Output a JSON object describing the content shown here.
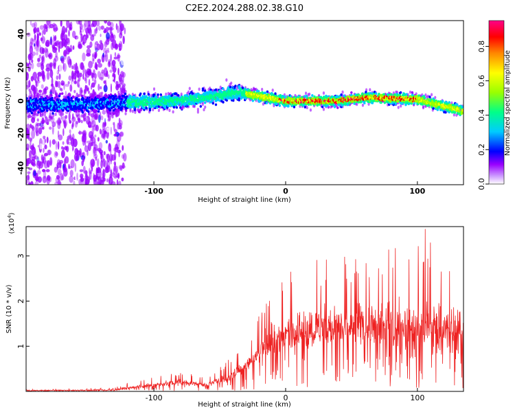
{
  "title": "C2E2.2024.288.02.38.G10",
  "chart_data": [
    {
      "type": "heatmap",
      "xlabel": "Height of straight line (km)",
      "ylabel": "Frequency (Hz)",
      "xlim": [
        -197,
        135
      ],
      "ylim": [
        -50,
        48
      ],
      "xticks": [
        -100,
        0,
        100
      ],
      "yticks": [
        -40,
        -20,
        0,
        20,
        40
      ],
      "colorbar": {
        "label": "Normalized spectral amplitude",
        "range": [
          0.0,
          0.95
        ],
        "ticks": [
          0.0,
          0.2,
          0.4,
          0.6,
          0.8
        ],
        "tick_labels": [
          "0.0",
          "0.2",
          "0.4",
          "0.6",
          "0.8"
        ],
        "colors": [
          "#ffffff",
          "#9900ff",
          "#0000ff",
          "#00ccff",
          "#00ff88",
          "#99ff00",
          "#ffff00",
          "#ff8800",
          "#ff0000",
          "#ff0088"
        ]
      },
      "band_center_hz": [
        {
          "x": -197,
          "y": -2
        },
        {
          "x": -150,
          "y": -2
        },
        {
          "x": -120,
          "y": -1
        },
        {
          "x": -80,
          "y": 0
        },
        {
          "x": -55,
          "y": 3
        },
        {
          "x": -35,
          "y": 5
        },
        {
          "x": -20,
          "y": 3
        },
        {
          "x": 0,
          "y": 0
        },
        {
          "x": 40,
          "y": 0
        },
        {
          "x": 60,
          "y": 2
        },
        {
          "x": 100,
          "y": 1
        },
        {
          "x": 135,
          "y": -6
        }
      ]
    },
    {
      "type": "line",
      "xlabel": "Height of straight line (km)",
      "ylabel": "SNR (10 * v/v)",
      "y_multiplier": "(x10",
      "y_multiplier_exp": "4",
      "xlim": [
        -197,
        135
      ],
      "ylim": [
        0,
        3.65
      ],
      "xticks": [
        -100,
        0,
        100
      ],
      "yticks": [
        1,
        2,
        3
      ],
      "color": "#ee2222",
      "envelope": [
        {
          "x": -197,
          "mean": 0.02,
          "max": 0.05
        },
        {
          "x": -130,
          "mean": 0.03,
          "max": 0.08
        },
        {
          "x": -120,
          "mean": 0.08,
          "max": 0.2
        },
        {
          "x": -80,
          "mean": 0.2,
          "max": 0.45
        },
        {
          "x": -60,
          "mean": 0.15,
          "max": 0.3
        },
        {
          "x": -40,
          "mean": 0.35,
          "max": 0.8
        },
        {
          "x": -25,
          "mean": 0.7,
          "max": 1.2
        },
        {
          "x": -15,
          "mean": 1.0,
          "max": 2.2
        },
        {
          "x": 0,
          "mean": 1.3,
          "max": 2.6
        },
        {
          "x": 20,
          "mean": 1.4,
          "max": 2.9
        },
        {
          "x": 40,
          "mean": 1.45,
          "max": 3.0
        },
        {
          "x": 60,
          "mean": 1.5,
          "max": 3.1
        },
        {
          "x": 80,
          "mean": 1.4,
          "max": 3.3
        },
        {
          "x": 108,
          "mean": 1.4,
          "max": 3.65
        },
        {
          "x": 135,
          "mean": 1.3,
          "max": 3.2
        }
      ]
    }
  ]
}
